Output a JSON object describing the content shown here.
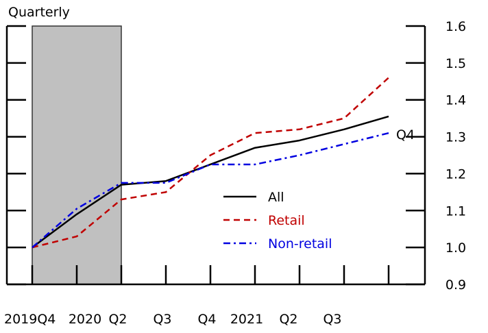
{
  "chart_data": {
    "type": "line",
    "subtitle": "Quarterly",
    "x_labels": [
      "2019Q4",
      "2020",
      "Q2",
      "Q3",
      "Q4",
      "2021",
      "Q2",
      "Q3"
    ],
    "ylim": [
      0.9,
      1.6
    ],
    "y_ticks": [
      "0.9",
      "1.0",
      "1.1",
      "1.2",
      "1.3",
      "1.4",
      "1.5",
      "1.6"
    ],
    "y_tick_values": [
      0.9,
      1.0,
      1.1,
      1.2,
      1.3,
      1.4,
      1.5,
      1.6
    ],
    "x_points": 9,
    "shaded_region": {
      "from_index": 0,
      "to_index": 2,
      "color": "#c0c0c0"
    },
    "series": [
      {
        "name": "All",
        "color": "#000000",
        "dash": "solid",
        "values": [
          1.0,
          1.09,
          1.17,
          1.18,
          1.225,
          1.27,
          1.29,
          1.32,
          1.355
        ]
      },
      {
        "name": "Retail",
        "color": "#c00000",
        "dash": "dashed",
        "values": [
          1.0,
          1.03,
          1.13,
          1.15,
          1.25,
          1.31,
          1.32,
          1.35,
          1.46
        ]
      },
      {
        "name": "Non-retail",
        "color": "#0000e0",
        "dash": "dashdot",
        "values": [
          1.0,
          1.105,
          1.175,
          1.175,
          1.225,
          1.225,
          1.25,
          1.28,
          1.31
        ]
      }
    ],
    "annotation": "Q4",
    "legend_position": "center-right",
    "grid": false
  }
}
